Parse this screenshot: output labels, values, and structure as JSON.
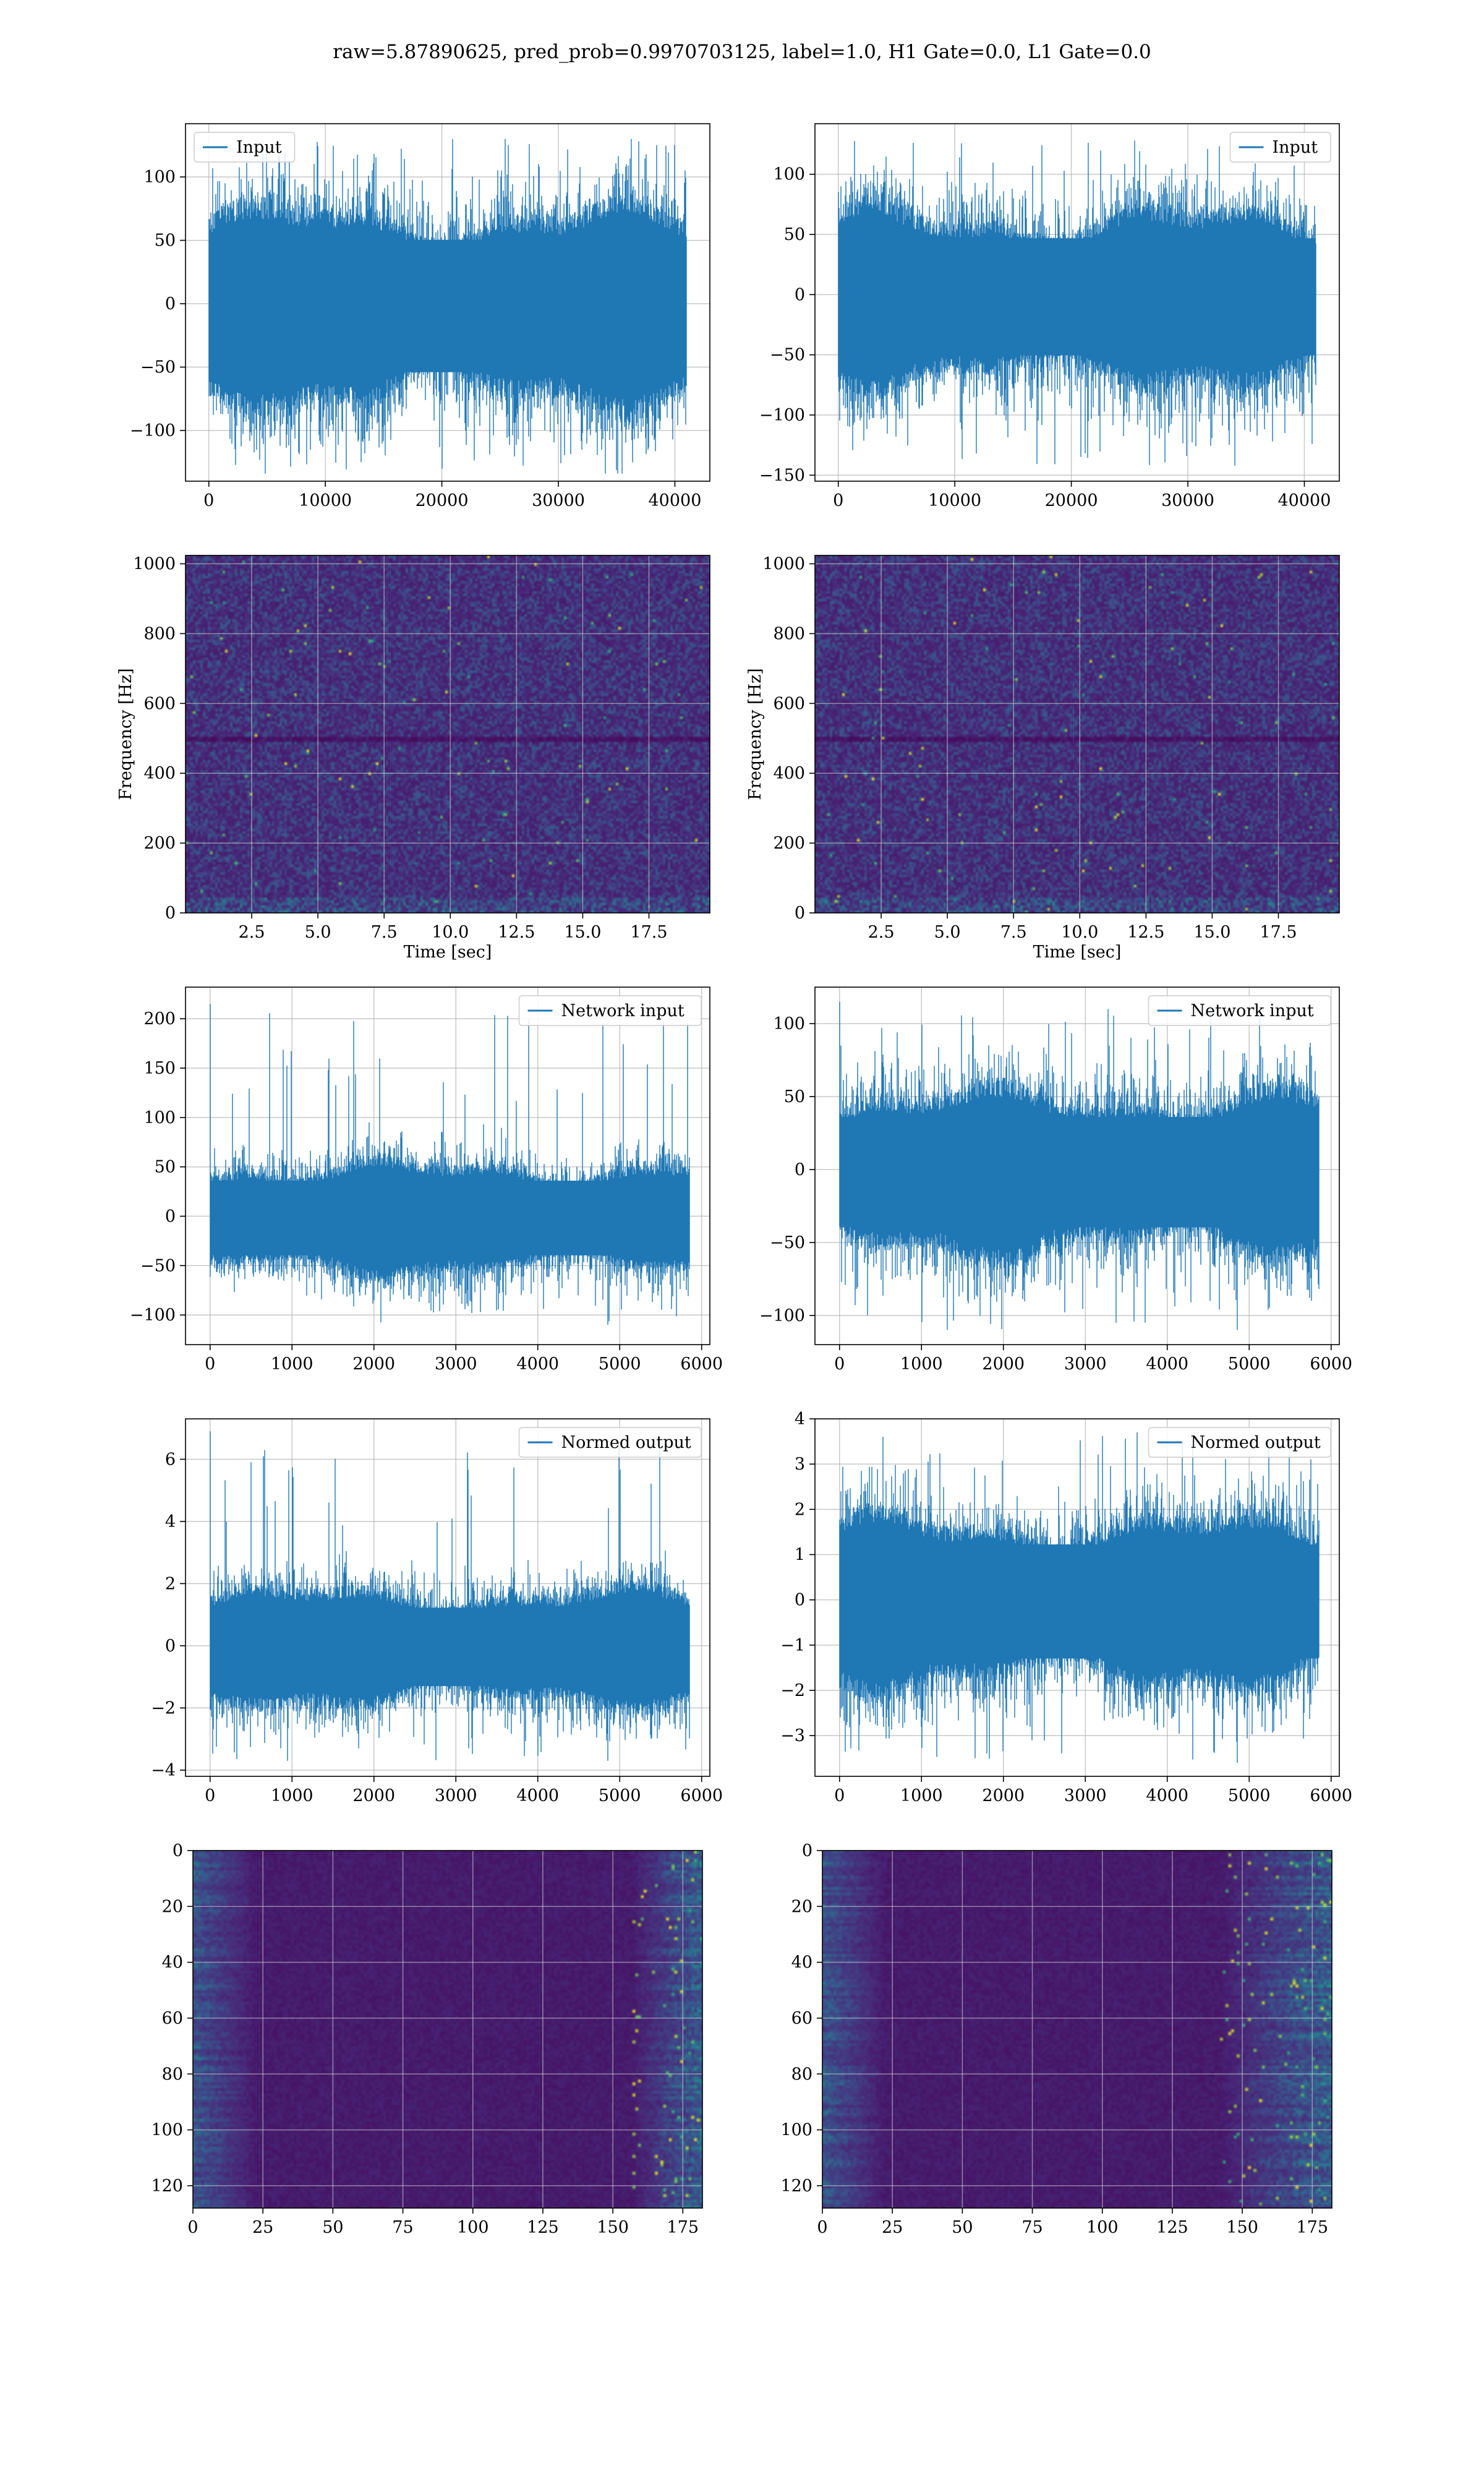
{
  "figure": {
    "title": "raw=5.87890625, pred_prob=0.9970703125, label=1.0, H1 Gate=0.0, L1 Gate=0.0"
  },
  "colors": {
    "line": "#1f77b4",
    "grid": "#b0b0b0",
    "viridis_dark": "#440154",
    "viridis_mid": "#21918c",
    "viridis_bright": "#fde725"
  },
  "chart_data": [
    {
      "id": "input-left",
      "type": "line",
      "legend": "Input",
      "legend_loc": "upper left",
      "series": [
        {
          "name": "Input",
          "n_samples": 40960,
          "envelope": [
            -75,
            70
          ],
          "peaks": [
            -134,
            130
          ]
        }
      ],
      "xlim": [
        -2000,
        43000
      ],
      "ylim": [
        -140,
        142
      ],
      "xticks": [
        0,
        10000,
        20000,
        30000,
        40000
      ],
      "xticklabels": [
        "0",
        "10000",
        "20000",
        "30000",
        "40000"
      ],
      "yticks": [
        -100,
        -50,
        0,
        50,
        100
      ],
      "yticklabels": [
        "−100",
        "−50",
        "0",
        "50",
        "100"
      ],
      "grid": true
    },
    {
      "id": "input-right",
      "type": "line",
      "legend": "Input",
      "legend_loc": "upper right",
      "series": [
        {
          "name": "Input",
          "n_samples": 40960,
          "envelope": [
            -70,
            65
          ],
          "peaks": [
            -142,
            128
          ]
        }
      ],
      "xlim": [
        -2000,
        43000
      ],
      "ylim": [
        -155,
        142
      ],
      "xticks": [
        0,
        10000,
        20000,
        30000,
        40000
      ],
      "xticklabels": [
        "0",
        "10000",
        "20000",
        "30000",
        "40000"
      ],
      "yticks": [
        -150,
        -100,
        -50,
        0,
        50,
        100
      ],
      "yticklabels": [
        "−150",
        "−100",
        "−50",
        "0",
        "50",
        "100"
      ],
      "grid": true
    },
    {
      "id": "spectrogram-left",
      "type": "heatmap",
      "xlabel": "Time [sec]",
      "ylabel": "Frequency [Hz]",
      "xlim": [
        0,
        19.8
      ],
      "ylim": [
        0,
        1024
      ],
      "xticks": [
        2.5,
        5.0,
        7.5,
        10.0,
        12.5,
        15.0,
        17.5
      ],
      "xticklabels": [
        "2.5",
        "5.0",
        "7.5",
        "10.0",
        "12.5",
        "15.0",
        "17.5"
      ],
      "yticks": [
        0,
        200,
        400,
        600,
        800,
        1000
      ],
      "yticklabels": [
        "0",
        "200",
        "400",
        "600",
        "800",
        "1000"
      ],
      "colormap": "viridis",
      "grid": true
    },
    {
      "id": "spectrogram-right",
      "type": "heatmap",
      "xlabel": "Time [sec]",
      "ylabel": "Frequency [Hz]",
      "xlim": [
        0,
        19.8
      ],
      "ylim": [
        0,
        1024
      ],
      "xticks": [
        2.5,
        5.0,
        7.5,
        10.0,
        12.5,
        15.0,
        17.5
      ],
      "xticklabels": [
        "2.5",
        "5.0",
        "7.5",
        "10.0",
        "12.5",
        "15.0",
        "17.5"
      ],
      "yticks": [
        0,
        200,
        400,
        600,
        800,
        1000
      ],
      "yticklabels": [
        "0",
        "200",
        "400",
        "600",
        "800",
        "1000"
      ],
      "colormap": "viridis",
      "grid": true
    },
    {
      "id": "network-input-left",
      "type": "line",
      "legend": "Network input",
      "legend_loc": "upper right",
      "series": [
        {
          "name": "Network input",
          "n_samples": 5850,
          "envelope": [
            -55,
            50
          ],
          "peaks": [
            -110,
            215
          ]
        }
      ],
      "xlim": [
        -300,
        6100
      ],
      "ylim": [
        -130,
        232
      ],
      "xticks": [
        0,
        1000,
        2000,
        3000,
        4000,
        5000,
        6000
      ],
      "xticklabels": [
        "0",
        "1000",
        "2000",
        "3000",
        "4000",
        "5000",
        "6000"
      ],
      "yticks": [
        -100,
        -50,
        0,
        50,
        100,
        150,
        200
      ],
      "yticklabels": [
        "−100",
        "−50",
        "0",
        "50",
        "100",
        "150",
        "200"
      ],
      "grid": true
    },
    {
      "id": "network-input-right",
      "type": "line",
      "legend": "Network input",
      "legend_loc": "upper right",
      "series": [
        {
          "name": "Network input",
          "n_samples": 5850,
          "envelope": [
            -55,
            50
          ],
          "peaks": [
            -110,
            115
          ]
        }
      ],
      "xlim": [
        -300,
        6100
      ],
      "ylim": [
        -120,
        125
      ],
      "xticks": [
        0,
        1000,
        2000,
        3000,
        4000,
        5000,
        6000
      ],
      "xticklabels": [
        "0",
        "1000",
        "2000",
        "3000",
        "4000",
        "5000",
        "6000"
      ],
      "yticks": [
        -100,
        -50,
        0,
        50,
        100
      ],
      "yticklabels": [
        "−100",
        "−50",
        "0",
        "50",
        "100"
      ],
      "grid": true
    },
    {
      "id": "normed-output-left",
      "type": "line",
      "legend": "Normed output",
      "legend_loc": "upper right",
      "series": [
        {
          "name": "Normed output",
          "n_samples": 5850,
          "envelope": [
            -1.8,
            1.7
          ],
          "peaks": [
            -3.7,
            6.9
          ]
        }
      ],
      "xlim": [
        -300,
        6100
      ],
      "ylim": [
        -4.2,
        7.3
      ],
      "xticks": [
        0,
        1000,
        2000,
        3000,
        4000,
        5000,
        6000
      ],
      "xticklabels": [
        "0",
        "1000",
        "2000",
        "3000",
        "4000",
        "5000",
        "6000"
      ],
      "yticks": [
        -4,
        -2,
        0,
        2,
        4,
        6
      ],
      "yticklabels": [
        "−4",
        "−2",
        "0",
        "2",
        "4",
        "6"
      ],
      "grid": true
    },
    {
      "id": "normed-output-right",
      "type": "line",
      "legend": "Normed output",
      "legend_loc": "upper right",
      "series": [
        {
          "name": "Normed output",
          "n_samples": 5850,
          "envelope": [
            -1.8,
            1.7
          ],
          "peaks": [
            -3.6,
            3.7
          ]
        }
      ],
      "xlim": [
        -300,
        6100
      ],
      "ylim": [
        -3.9,
        4.0
      ],
      "xticks": [
        0,
        1000,
        2000,
        3000,
        4000,
        5000,
        6000
      ],
      "xticklabels": [
        "0",
        "1000",
        "2000",
        "3000",
        "4000",
        "5000",
        "6000"
      ],
      "yticks": [
        -3,
        -2,
        -1,
        0,
        1,
        2,
        3,
        4
      ],
      "yticklabels": [
        "−3",
        "−2",
        "−1",
        "0",
        "1",
        "2",
        "3",
        "4"
      ],
      "grid": true
    },
    {
      "id": "feature-map-left",
      "type": "heatmap",
      "xlim": [
        0,
        182
      ],
      "ylim": [
        128,
        0
      ],
      "xticks": [
        0,
        25,
        50,
        75,
        100,
        125,
        150,
        175
      ],
      "xticklabels": [
        "0",
        "25",
        "50",
        "75",
        "100",
        "125",
        "150",
        "175"
      ],
      "yticks": [
        0,
        20,
        40,
        60,
        80,
        100,
        120
      ],
      "yticklabels": [
        "0",
        "20",
        "40",
        "60",
        "80",
        "100",
        "120"
      ],
      "colormap": "viridis",
      "grid": true
    },
    {
      "id": "feature-map-right",
      "type": "heatmap",
      "xlim": [
        0,
        182
      ],
      "ylim": [
        128,
        0
      ],
      "xticks": [
        0,
        25,
        50,
        75,
        100,
        125,
        150,
        175
      ],
      "xticklabels": [
        "0",
        "25",
        "50",
        "75",
        "100",
        "125",
        "150",
        "175"
      ],
      "yticks": [
        0,
        20,
        40,
        60,
        80,
        100,
        120
      ],
      "yticklabels": [
        "0",
        "20",
        "40",
        "60",
        "80",
        "100",
        "120"
      ],
      "colormap": "viridis",
      "grid": true
    }
  ]
}
